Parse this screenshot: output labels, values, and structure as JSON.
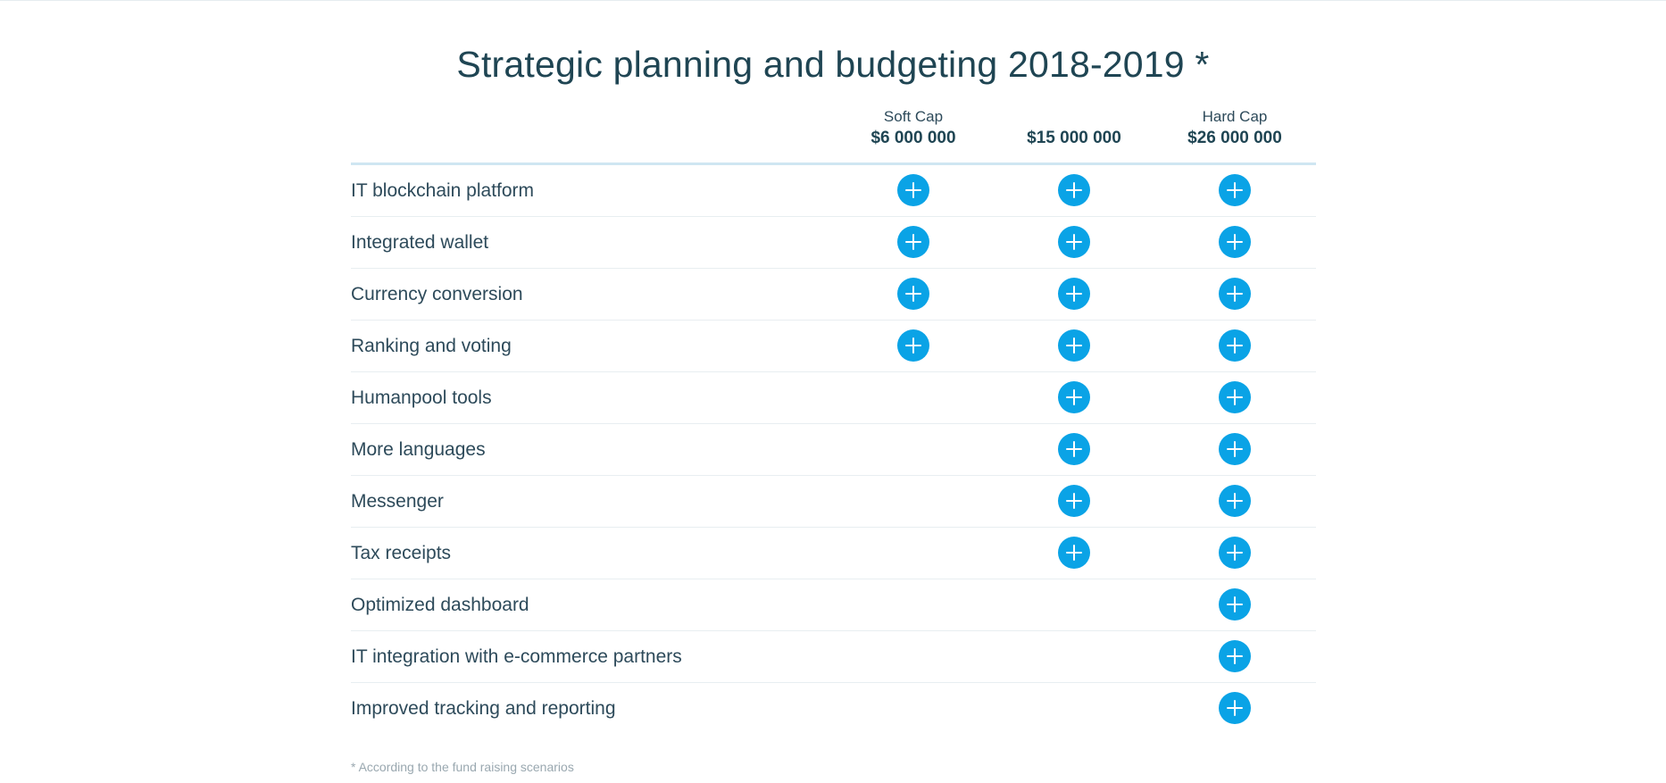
{
  "title": "Strategic planning and budgeting 2018-2019 *",
  "columns": [
    {
      "label": "Soft Cap",
      "amount": "$6 000 000"
    },
    {
      "label": "",
      "amount": "$15 000 000"
    },
    {
      "label": "Hard Cap",
      "amount": "$26 000 000"
    }
  ],
  "rows": [
    {
      "label": "IT blockchain platform",
      "included": [
        true,
        true,
        true
      ]
    },
    {
      "label": "Integrated wallet",
      "included": [
        true,
        true,
        true
      ]
    },
    {
      "label": "Currency conversion",
      "included": [
        true,
        true,
        true
      ]
    },
    {
      "label": "Ranking and voting",
      "included": [
        true,
        true,
        true
      ]
    },
    {
      "label": "Humanpool tools",
      "included": [
        false,
        true,
        true
      ]
    },
    {
      "label": "More languages",
      "included": [
        false,
        true,
        true
      ]
    },
    {
      "label": "Messenger",
      "included": [
        false,
        true,
        true
      ]
    },
    {
      "label": "Tax receipts",
      "included": [
        false,
        true,
        true
      ]
    },
    {
      "label": "Optimized dashboard",
      "included": [
        false,
        false,
        true
      ]
    },
    {
      "label": "IT integration with e-commerce partners",
      "included": [
        false,
        false,
        true
      ]
    },
    {
      "label": "Improved tracking and reporting",
      "included": [
        false,
        false,
        true
      ]
    }
  ],
  "footnote": "* According to the fund raising scenarios",
  "colors": {
    "accent": "#0aa3e6",
    "text": "#2d4a5a",
    "title": "#1f4553",
    "footnote": "#9aa8b0"
  },
  "icons": {
    "included": "plus-circle-icon"
  }
}
